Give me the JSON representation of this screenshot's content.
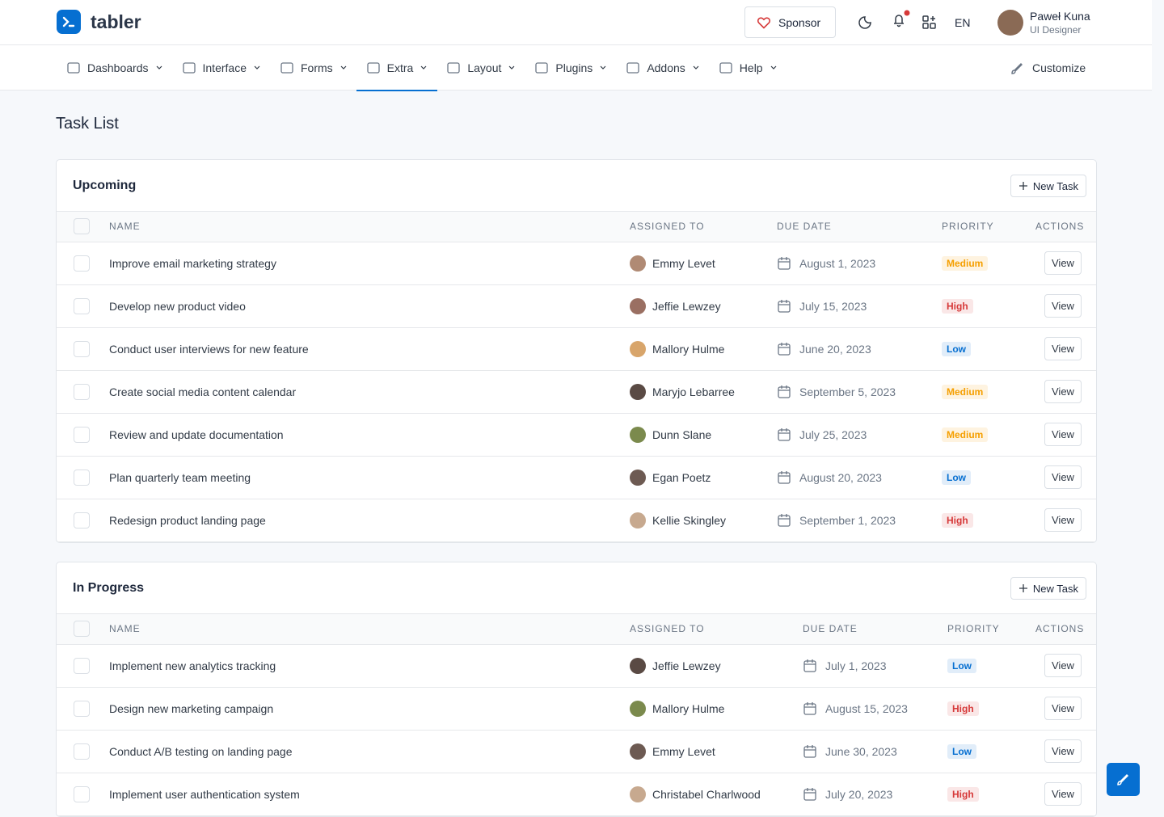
{
  "header": {
    "brand": "tabler",
    "sponsor": "Sponsor",
    "language": "EN",
    "user": {
      "name": "Paweł Kuna",
      "role": "UI Designer"
    }
  },
  "nav": {
    "items": [
      "Dashboards",
      "Interface",
      "Forms",
      "Extra",
      "Layout",
      "Plugins",
      "Addons",
      "Help"
    ],
    "customize": "Customize"
  },
  "page_title": "Task List",
  "priority_colors": {
    "Low": "#066fd1",
    "Medium": "#f59f00",
    "High": "#d63939"
  },
  "sections": [
    {
      "title": "Upcoming",
      "button": "New Task",
      "action": "View",
      "columns": [
        "NAME",
        "ASSIGNED TO",
        "DUE DATE",
        "PRIORITY",
        "ACTIONS"
      ],
      "rows": [
        {
          "name": "Improve email marketing strategy",
          "assignee": "Emmy Levet",
          "due": "August 1, 2023",
          "priority": "Medium"
        },
        {
          "name": "Develop new product video",
          "assignee": "Jeffie Lewzey",
          "due": "July 15, 2023",
          "priority": "High"
        },
        {
          "name": "Conduct user interviews for new feature",
          "assignee": "Mallory Hulme",
          "due": "June 20, 2023",
          "priority": "Low"
        },
        {
          "name": "Create social media content calendar",
          "assignee": "Maryjo Lebarree",
          "due": "September 5, 2023",
          "priority": "Medium"
        },
        {
          "name": "Review and update documentation",
          "assignee": "Dunn Slane",
          "due": "July 25, 2023",
          "priority": "Medium"
        },
        {
          "name": "Plan quarterly team meeting",
          "assignee": "Egan Poetz",
          "due": "August 20, 2023",
          "priority": "Low"
        },
        {
          "name": "Redesign product landing page",
          "assignee": "Kellie Skingley",
          "due": "September 1, 2023",
          "priority": "High"
        }
      ]
    },
    {
      "title": "In Progress",
      "button": "New Task",
      "action": "View",
      "columns": [
        "NAME",
        "ASSIGNED TO",
        "DUE DATE",
        "PRIORITY",
        "ACTIONS"
      ],
      "rows": [
        {
          "name": "Implement new analytics tracking",
          "assignee": "Jeffie Lewzey",
          "due": "July 1, 2023",
          "priority": "Low"
        },
        {
          "name": "Design new marketing campaign",
          "assignee": "Mallory Hulme",
          "due": "August 15, 2023",
          "priority": "High"
        },
        {
          "name": "Conduct A/B testing on landing page",
          "assignee": "Emmy Levet",
          "due": "June 30, 2023",
          "priority": "Low"
        },
        {
          "name": "Implement user authentication system",
          "assignee": "Christabel Charlwood",
          "due": "July 20, 2023",
          "priority": "High"
        }
      ]
    }
  ]
}
